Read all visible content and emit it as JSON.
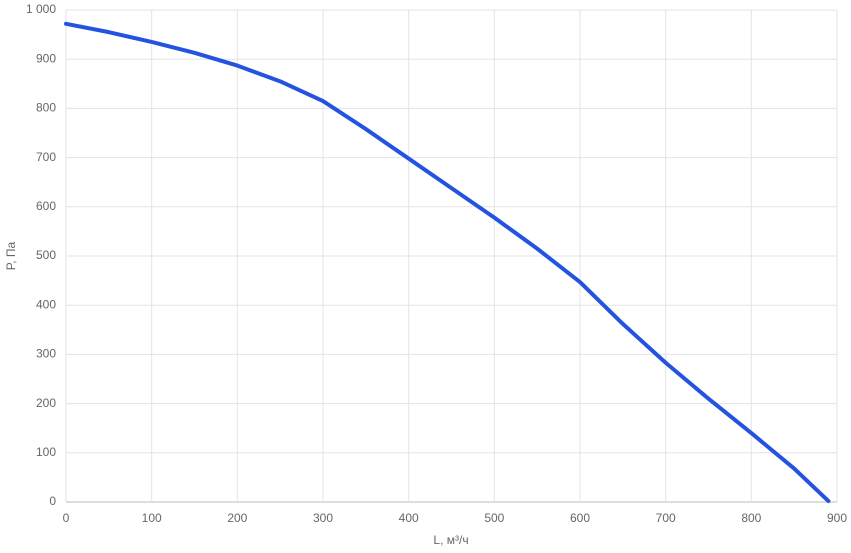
{
  "chart_data": {
    "type": "line",
    "x_label": "L, м³/ч",
    "y_label": "P, Па",
    "x": [
      0,
      50,
      100,
      150,
      200,
      250,
      300,
      350,
      400,
      450,
      500,
      550,
      600,
      650,
      700,
      750,
      800,
      850,
      890
    ],
    "series": [
      {
        "color": "#2453e0",
        "values": [
          972,
          955,
          935,
          913,
          887,
          855,
          815,
          758,
          698,
          638,
          578,
          515,
          447,
          362,
          283,
          210,
          140,
          68,
          2
        ]
      }
    ],
    "xlim": [
      0,
      900
    ],
    "xticks": [
      0,
      100,
      200,
      300,
      400,
      500,
      600,
      700,
      800,
      900
    ],
    "ylim": [
      0,
      1000
    ],
    "yticks": [
      0,
      100,
      200,
      300,
      400,
      500,
      600,
      700,
      800,
      900,
      {
        "value": 1000,
        "label": "1 000"
      }
    ],
    "grid": true
  }
}
